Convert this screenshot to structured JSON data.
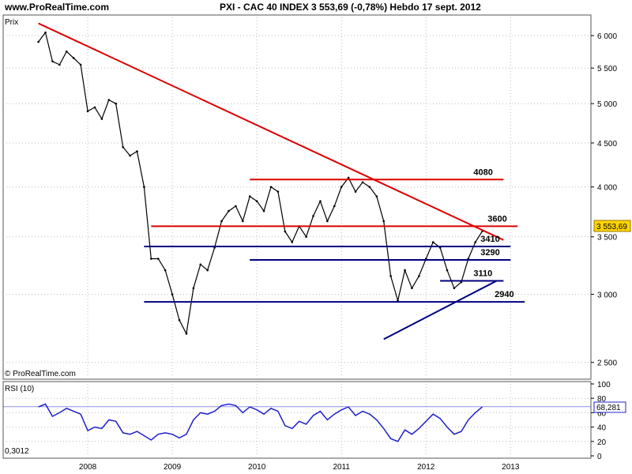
{
  "header": {
    "site": "www.ProRealTime.com",
    "title": "PXI - CAC 40 INDEX    3 553,69 (-0,78%)    Hebdo  17 sept. 2012"
  },
  "main_panel": {
    "label": "Prix",
    "copyright": "© ProRealTime.com",
    "last_price_label": "3 553,69",
    "y_ticks": [
      "6 000",
      "5 500",
      "5 000",
      "4 500",
      "4 000",
      "3 500",
      "3 000",
      "2 500"
    ]
  },
  "rsi_panel": {
    "label": "RSI (10)",
    "last_value_label": "68,281",
    "min_label": "0,3012",
    "y_ticks": [
      "100",
      "80",
      "60",
      "40",
      "20",
      "0"
    ]
  },
  "x_ticks": [
    "2008",
    "2009",
    "2010",
    "2011",
    "2012",
    "2013"
  ],
  "colors": {
    "price": "#000000",
    "trend_red": "#dd0000",
    "support_blue": "#000080",
    "rsi": "#2020cc",
    "background": "#ffffff"
  },
  "chart_data": {
    "type": "line",
    "y_scale": "log",
    "ylim": [
      2400,
      6300
    ],
    "series": [
      {
        "name": "PXI - CAC 40 INDEX",
        "x": [
          "2007-06",
          "2007-07",
          "2007-08",
          "2007-09",
          "2007-10",
          "2007-11",
          "2007-12",
          "2008-01",
          "2008-02",
          "2008-03",
          "2008-04",
          "2008-05",
          "2008-06",
          "2008-07",
          "2008-08",
          "2008-09",
          "2008-10",
          "2008-11",
          "2008-12",
          "2009-01",
          "2009-02",
          "2009-03",
          "2009-04",
          "2009-05",
          "2009-06",
          "2009-07",
          "2009-08",
          "2009-09",
          "2009-10",
          "2009-11",
          "2009-12",
          "2010-01",
          "2010-02",
          "2010-03",
          "2010-04",
          "2010-05",
          "2010-06",
          "2010-07",
          "2010-08",
          "2010-09",
          "2010-10",
          "2010-11",
          "2010-12",
          "2011-01",
          "2011-02",
          "2011-03",
          "2011-04",
          "2011-05",
          "2011-06",
          "2011-07",
          "2011-08",
          "2011-09",
          "2011-10",
          "2011-11",
          "2011-12",
          "2012-01",
          "2012-02",
          "2012-03",
          "2012-04",
          "2012-05",
          "2012-06",
          "2012-07",
          "2012-08",
          "2012-09"
        ],
        "values": [
          5900,
          6050,
          5600,
          5550,
          5750,
          5650,
          5550,
          4900,
          4950,
          4800,
          5050,
          5000,
          4450,
          4350,
          4400,
          4000,
          3300,
          3300,
          3200,
          3000,
          2800,
          2700,
          3050,
          3250,
          3200,
          3400,
          3650,
          3750,
          3800,
          3650,
          3900,
          3850,
          3750,
          4000,
          3950,
          3550,
          3450,
          3600,
          3500,
          3700,
          3850,
          3650,
          3800,
          4000,
          4100,
          3950,
          4050,
          4000,
          3900,
          3650,
          3150,
          2950,
          3200,
          3050,
          3150,
          3300,
          3450,
          3400,
          3200,
          3050,
          3100,
          3300,
          3450,
          3553.69
        ]
      },
      {
        "name": "RSI (10)",
        "x": [
          "2007-06",
          "2007-07",
          "2007-08",
          "2007-09",
          "2007-10",
          "2007-11",
          "2007-12",
          "2008-01",
          "2008-02",
          "2008-03",
          "2008-04",
          "2008-05",
          "2008-06",
          "2008-07",
          "2008-08",
          "2008-09",
          "2008-10",
          "2008-11",
          "2008-12",
          "2009-01",
          "2009-02",
          "2009-03",
          "2009-04",
          "2009-05",
          "2009-06",
          "2009-07",
          "2009-08",
          "2009-09",
          "2009-10",
          "2009-11",
          "2009-12",
          "2010-01",
          "2010-02",
          "2010-03",
          "2010-04",
          "2010-05",
          "2010-06",
          "2010-07",
          "2010-08",
          "2010-09",
          "2010-10",
          "2010-11",
          "2010-12",
          "2011-01",
          "2011-02",
          "2011-03",
          "2011-04",
          "2011-05",
          "2011-06",
          "2011-07",
          "2011-08",
          "2011-09",
          "2011-10",
          "2011-11",
          "2011-12",
          "2012-01",
          "2012-02",
          "2012-03",
          "2012-04",
          "2012-05",
          "2012-06",
          "2012-07",
          "2012-08",
          "2012-09"
        ],
        "values": [
          68,
          72,
          55,
          60,
          66,
          62,
          58,
          35,
          40,
          38,
          50,
          48,
          32,
          30,
          34,
          28,
          22,
          30,
          32,
          30,
          25,
          30,
          50,
          60,
          58,
          62,
          70,
          72,
          70,
          60,
          68,
          64,
          58,
          66,
          62,
          42,
          38,
          48,
          44,
          56,
          62,
          50,
          58,
          64,
          68,
          56,
          62,
          58,
          50,
          38,
          24,
          20,
          36,
          30,
          38,
          48,
          58,
          52,
          40,
          30,
          34,
          50,
          60,
          68.281
        ]
      }
    ],
    "annotations": [
      {
        "type": "trendline",
        "color": "red",
        "from": [
          "2007-06",
          6200
        ],
        "to": [
          "2012-12",
          3470
        ]
      },
      {
        "type": "hline",
        "color": "red",
        "value": 4080,
        "label": "4080",
        "from": "2009-12",
        "to": "2012-12"
      },
      {
        "type": "hline",
        "color": "red",
        "value": 3600,
        "label": "3600",
        "from": "2008-10",
        "to": "2013-02"
      },
      {
        "type": "hline",
        "color": "blue",
        "value": 3410,
        "label": "3410",
        "from": "2008-09",
        "to": "2013-01"
      },
      {
        "type": "hline",
        "color": "blue",
        "value": 3290,
        "label": "3290",
        "from": "2009-12",
        "to": "2013-01"
      },
      {
        "type": "hline",
        "color": "blue",
        "value": 3110,
        "label": "3110",
        "from": "2012-03",
        "to": "2012-12"
      },
      {
        "type": "hline",
        "color": "blue",
        "value": 2940,
        "label": "2940",
        "from": "2008-09",
        "to": "2013-03"
      },
      {
        "type": "trendline",
        "color": "blue",
        "from": [
          "2011-07",
          2660
        ],
        "to": [
          "2012-11",
          3110
        ]
      }
    ]
  }
}
